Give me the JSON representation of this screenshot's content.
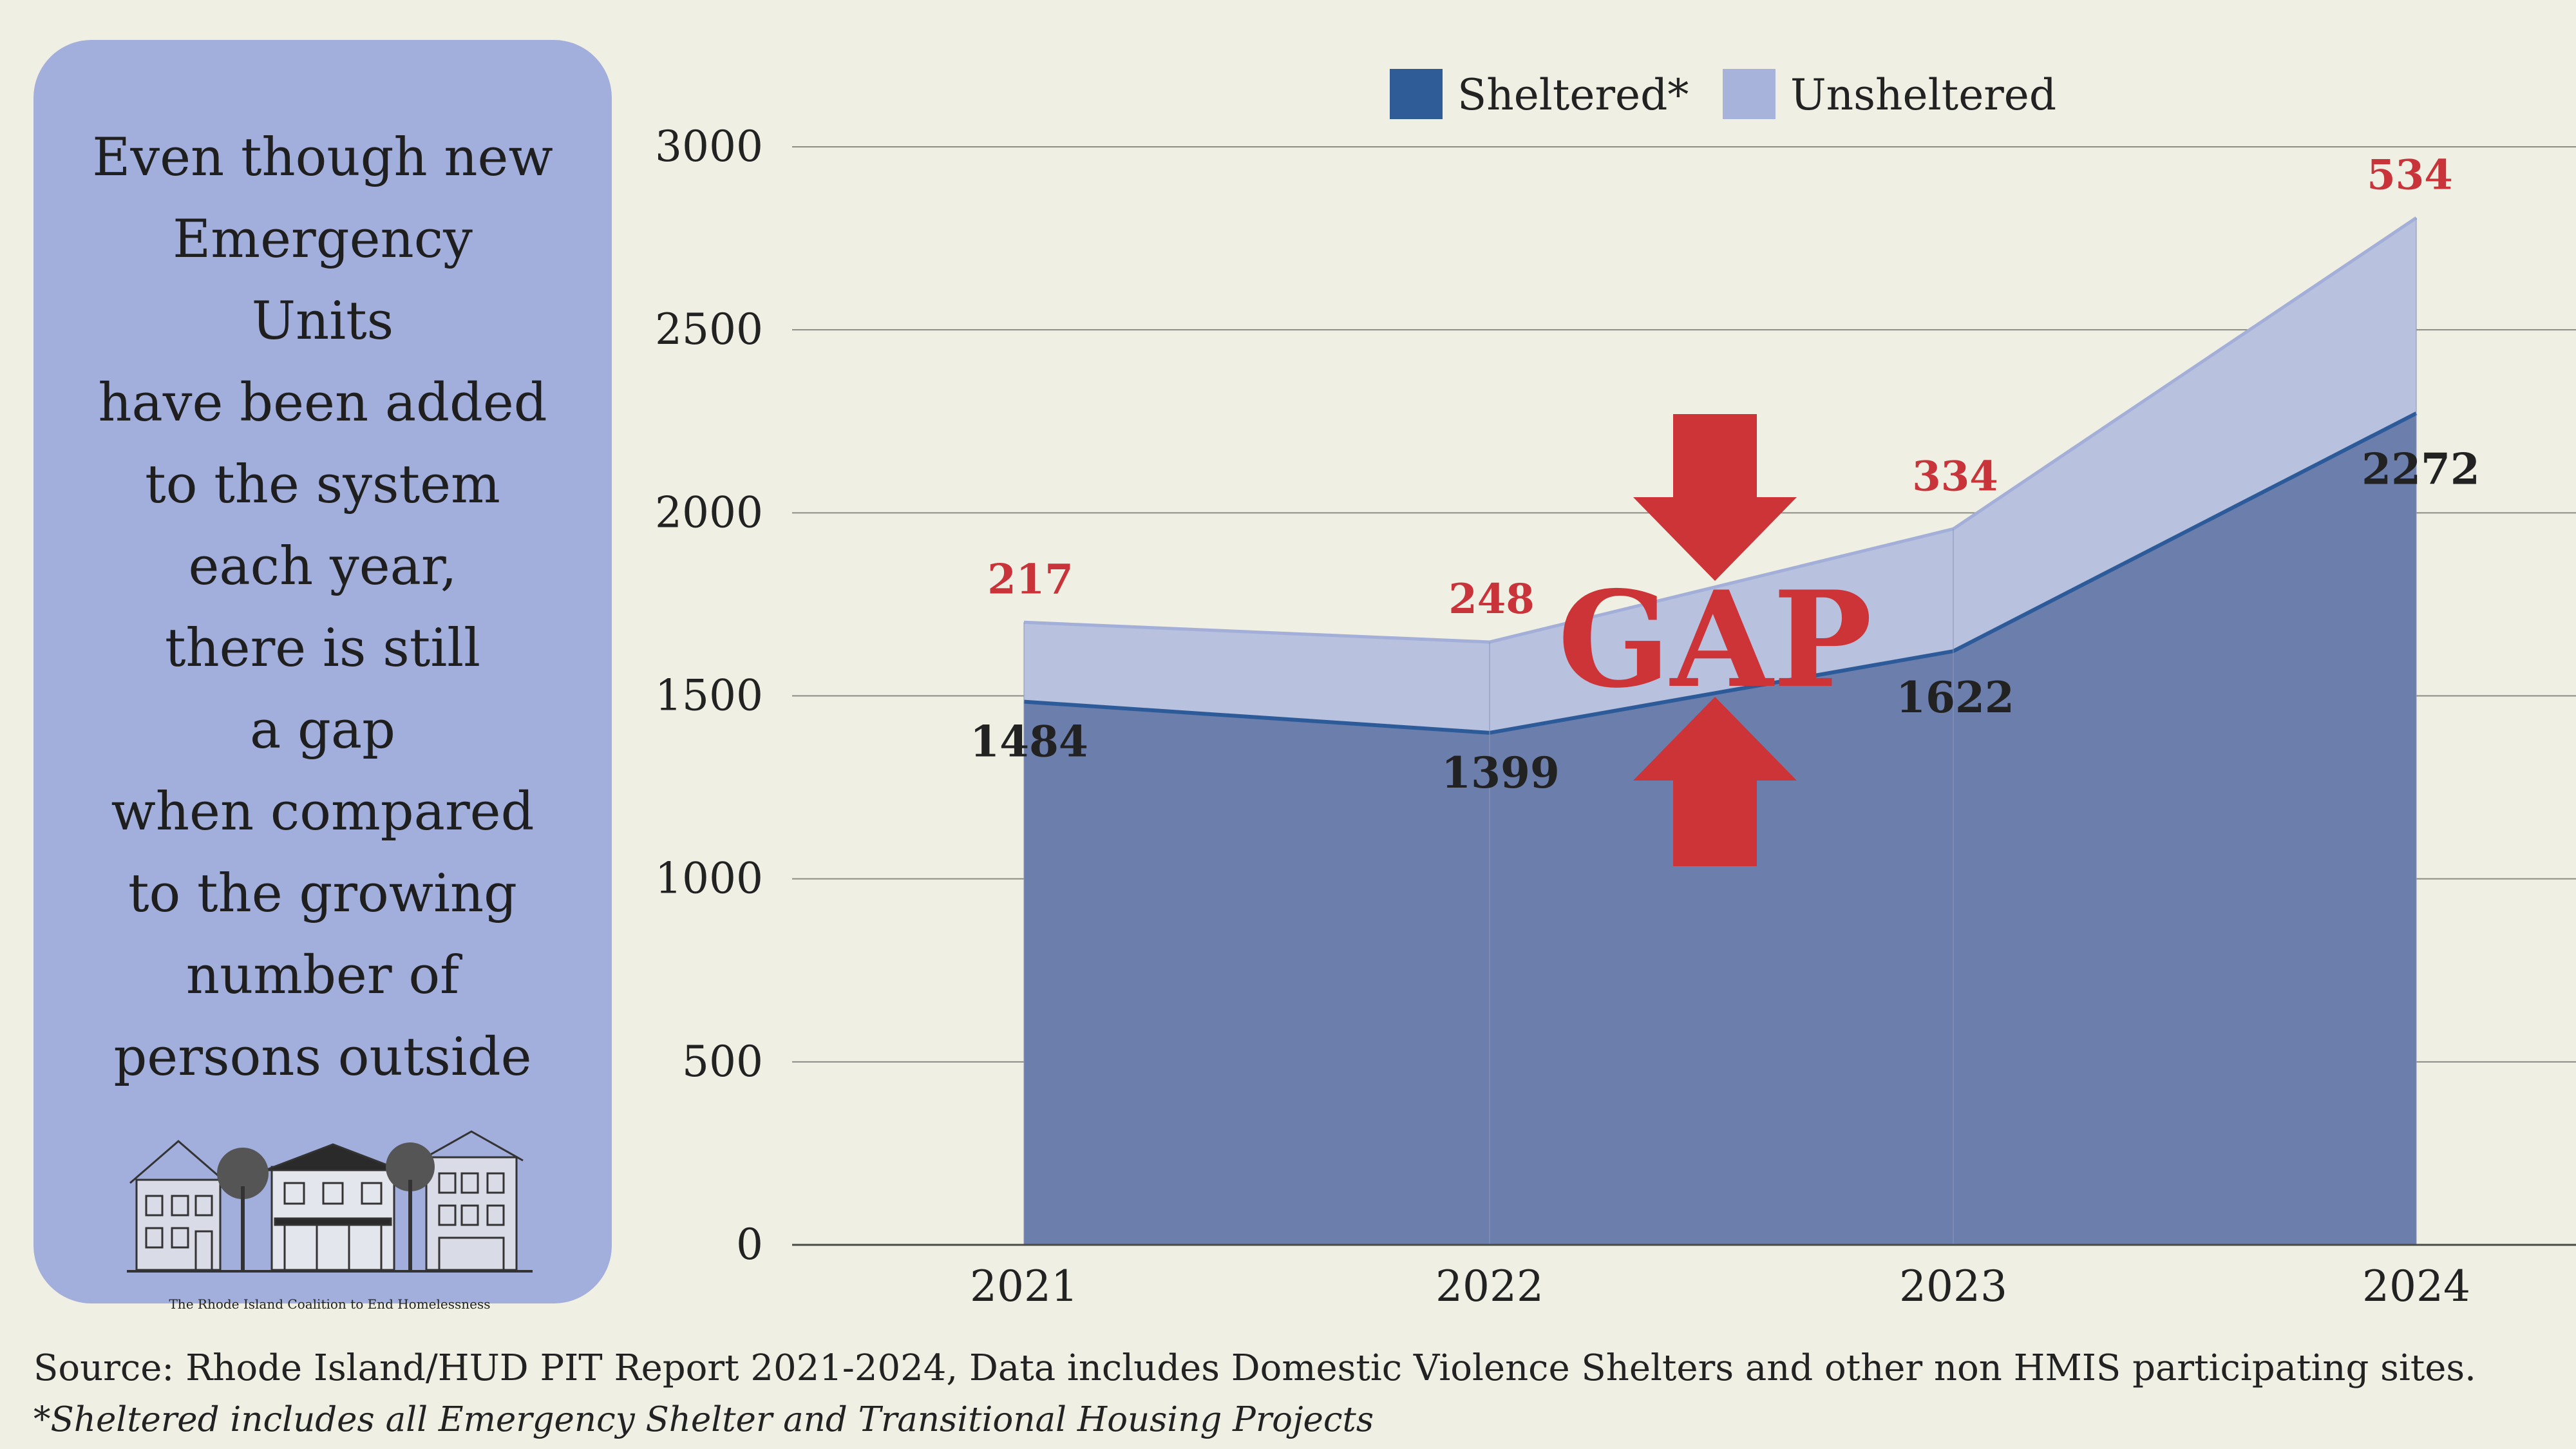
{
  "side_panel": {
    "lines": [
      "Even though new",
      "Emergency",
      "Units",
      "have been added",
      "to the system",
      "each year,",
      "there is still",
      "a gap",
      "when compared",
      "to the growing",
      "number of",
      "persons outside"
    ],
    "logo_caption": "The Rhode Island Coalition to End Homelessness"
  },
  "chart_data": {
    "type": "area",
    "stacked": true,
    "categories": [
      "2021",
      "2022",
      "2023",
      "2024"
    ],
    "series": [
      {
        "name": "Sheltered*",
        "values": [
          1484,
          1399,
          1622,
          2272
        ],
        "color": "#6b7eac",
        "line_color": "#2d5b9a"
      },
      {
        "name": "Unsheltered",
        "values": [
          217,
          248,
          334,
          534
        ],
        "color": "#b8c1de",
        "line_color": "#a3afd8"
      }
    ],
    "ylim": [
      0,
      3000
    ],
    "yticks": [
      "0",
      "500",
      "1000",
      "1500",
      "2000",
      "2500",
      "3000"
    ],
    "grid": true,
    "legend": "top-center",
    "legend_colors": {
      "Sheltered*": "#2f5b97",
      "Unsheltered": "#a8b3dc"
    },
    "label_colors": {
      "sheltered": "#222222",
      "unsheltered": "#c8343a"
    },
    "annotation": {
      "text": "GAP",
      "color": "#cc3437"
    }
  },
  "footer": {
    "source": "Source: Rhode Island/HUD PIT Report 2021-2024, Data includes Domestic Violence Shelters and other non HMIS participating sites.",
    "footnote": "*Sheltered includes all Emergency Shelter and Transitional Housing Projects"
  }
}
